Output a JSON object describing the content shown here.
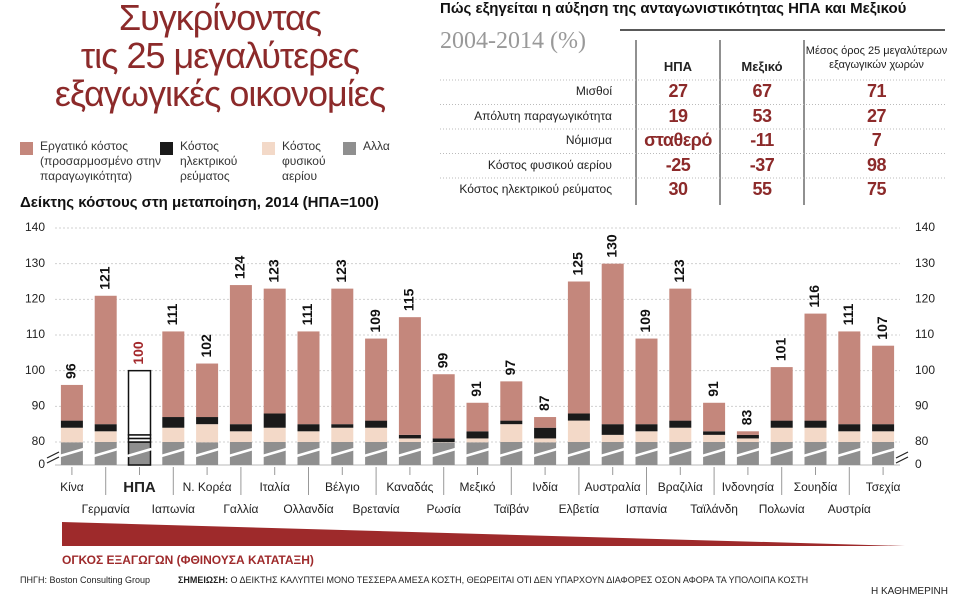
{
  "header": {
    "title": [
      "Συγκρίνοντας",
      "τις 25 μεγαλύτερες",
      "εξαγωγικές οικονομίες"
    ]
  },
  "table": {
    "title": "Πώς εξηγείται η αύξηση της ανταγωνιστικότητας ΗΠΑ και Μεξικού",
    "subtitle": "2004-2014 (%)",
    "columns": [
      "ΗΠΑ",
      "Μεξικό",
      "Μέσος όρος 25 μεγαλύτερων εξαγωγικών χωρών"
    ],
    "rows": [
      {
        "label": "Μισθοί",
        "values": [
          27,
          67,
          71
        ]
      },
      {
        "label": "Απόλυτη παραγωγικότητα",
        "values": [
          19,
          53,
          27
        ]
      },
      {
        "label": "Νόμισμα",
        "values": [
          "σταθερό",
          -11,
          7
        ]
      },
      {
        "label": "Κόστος φυσικού αερίου",
        "values": [
          -25,
          -37,
          98
        ]
      },
      {
        "label": "Κόστος ηλεκτρικού ρεύματος",
        "values": [
          30,
          55,
          75
        ]
      }
    ]
  },
  "chart_data": {
    "type": "stacked_bar",
    "title": "Δείκτης κόστους στη μεταποίηση, 2014 (ΗΠΑ=100)",
    "categories": [
      "Κίνα",
      "Γερμανία",
      "ΗΠΑ",
      "Ιαπωνία",
      "Ν. Κορέα",
      "Γαλλία",
      "Ιταλία",
      "Ολλανδία",
      "Βέλγιο",
      "Βρετανία",
      "Καναδάς",
      "Ρωσία",
      "Μεξικό",
      "Ταϊβάν",
      "Ινδία",
      "Ελβετία",
      "Αυστραλία",
      "Ισπανία",
      "Βραζιλία",
      "Ταϊλάνδη",
      "Ινδονησία",
      "Πολωνία",
      "Σουηδία",
      "Αυστρία",
      "Τσεχία"
    ],
    "series": [
      {
        "name": "Εργατικό κόστος (προσαρμοσμένο στην παραγωγικότητα)",
        "color": "#c4877c",
        "values": [
          10,
          36,
          18,
          24,
          15,
          39,
          35,
          26,
          38,
          23,
          33,
          18,
          8,
          11,
          3,
          37,
          45,
          24,
          37,
          8,
          1,
          15,
          30,
          26,
          22
        ]
      },
      {
        "name": "Κόστος ηλεκτρικού ρεύματος",
        "color": "#1a1a1a",
        "values": [
          2,
          2,
          1,
          3,
          2,
          2,
          4,
          2,
          1,
          2,
          1,
          1,
          2,
          1,
          3,
          2,
          3,
          2,
          2,
          1,
          1,
          2,
          2,
          2,
          2
        ]
      },
      {
        "name": "Κόστος φυσικού αερίου",
        "color": "#f3d9c8",
        "values": [
          5,
          3,
          1,
          4,
          6,
          3,
          4,
          3,
          4,
          4,
          1,
          1,
          2,
          5,
          2,
          6,
          2,
          3,
          4,
          2,
          1,
          4,
          4,
          3,
          3
        ]
      },
      {
        "name": "Αλλα",
        "color": "#8f8f8f",
        "values": [
          79,
          80,
          80,
          80,
          79,
          80,
          80,
          80,
          80,
          80,
          80,
          79,
          79,
          80,
          79,
          80,
          80,
          80,
          80,
          80,
          80,
          80,
          80,
          80,
          80
        ]
      }
    ],
    "totals": [
      96,
      121,
      100,
      111,
      102,
      124,
      123,
      111,
      123,
      109,
      115,
      99,
      91,
      97,
      87,
      125,
      130,
      109,
      123,
      91,
      83,
      101,
      116,
      111,
      107
    ],
    "highlight": "ΗΠΑ",
    "highlight_color": "#a3282b",
    "ylim": [
      0,
      140
    ],
    "yticks": [
      0,
      80,
      90,
      100,
      110,
      120,
      130,
      140
    ],
    "grid": true,
    "annotation": "ΟΓΚΟΣ ΕΞΑΓΩΓΩΝ (ΦΘΙΝΟΥΣΑ ΚΑΤΑΤΑΞΗ)"
  },
  "footer": {
    "source": "ΠΗΓΗ: Boston Consulting Group",
    "note_label": "ΣΗΜΕΙΩΣΗ:",
    "note": "Ο ΔΕΙΚΤΗΣ ΚΑΛΥΠΤΕΙ ΜΟΝΟ ΤΕΣΣΕΡΑ ΑΜΕΣΑ ΚΟΣΤΗ, ΘΕΩΡΕΙΤΑΙ ΟΤΙ ΔΕΝ ΥΠΑΡΧΟΥΝ ΔΙΑΦΟΡΕΣ ΟΣΟΝ ΑΦΟΡΑ ΤΑ ΥΠΟΛΟΙΠΑ ΚΟΣΤΗ",
    "credit": "Η ΚΑΘΗΜΕΡΙΝΗ"
  }
}
